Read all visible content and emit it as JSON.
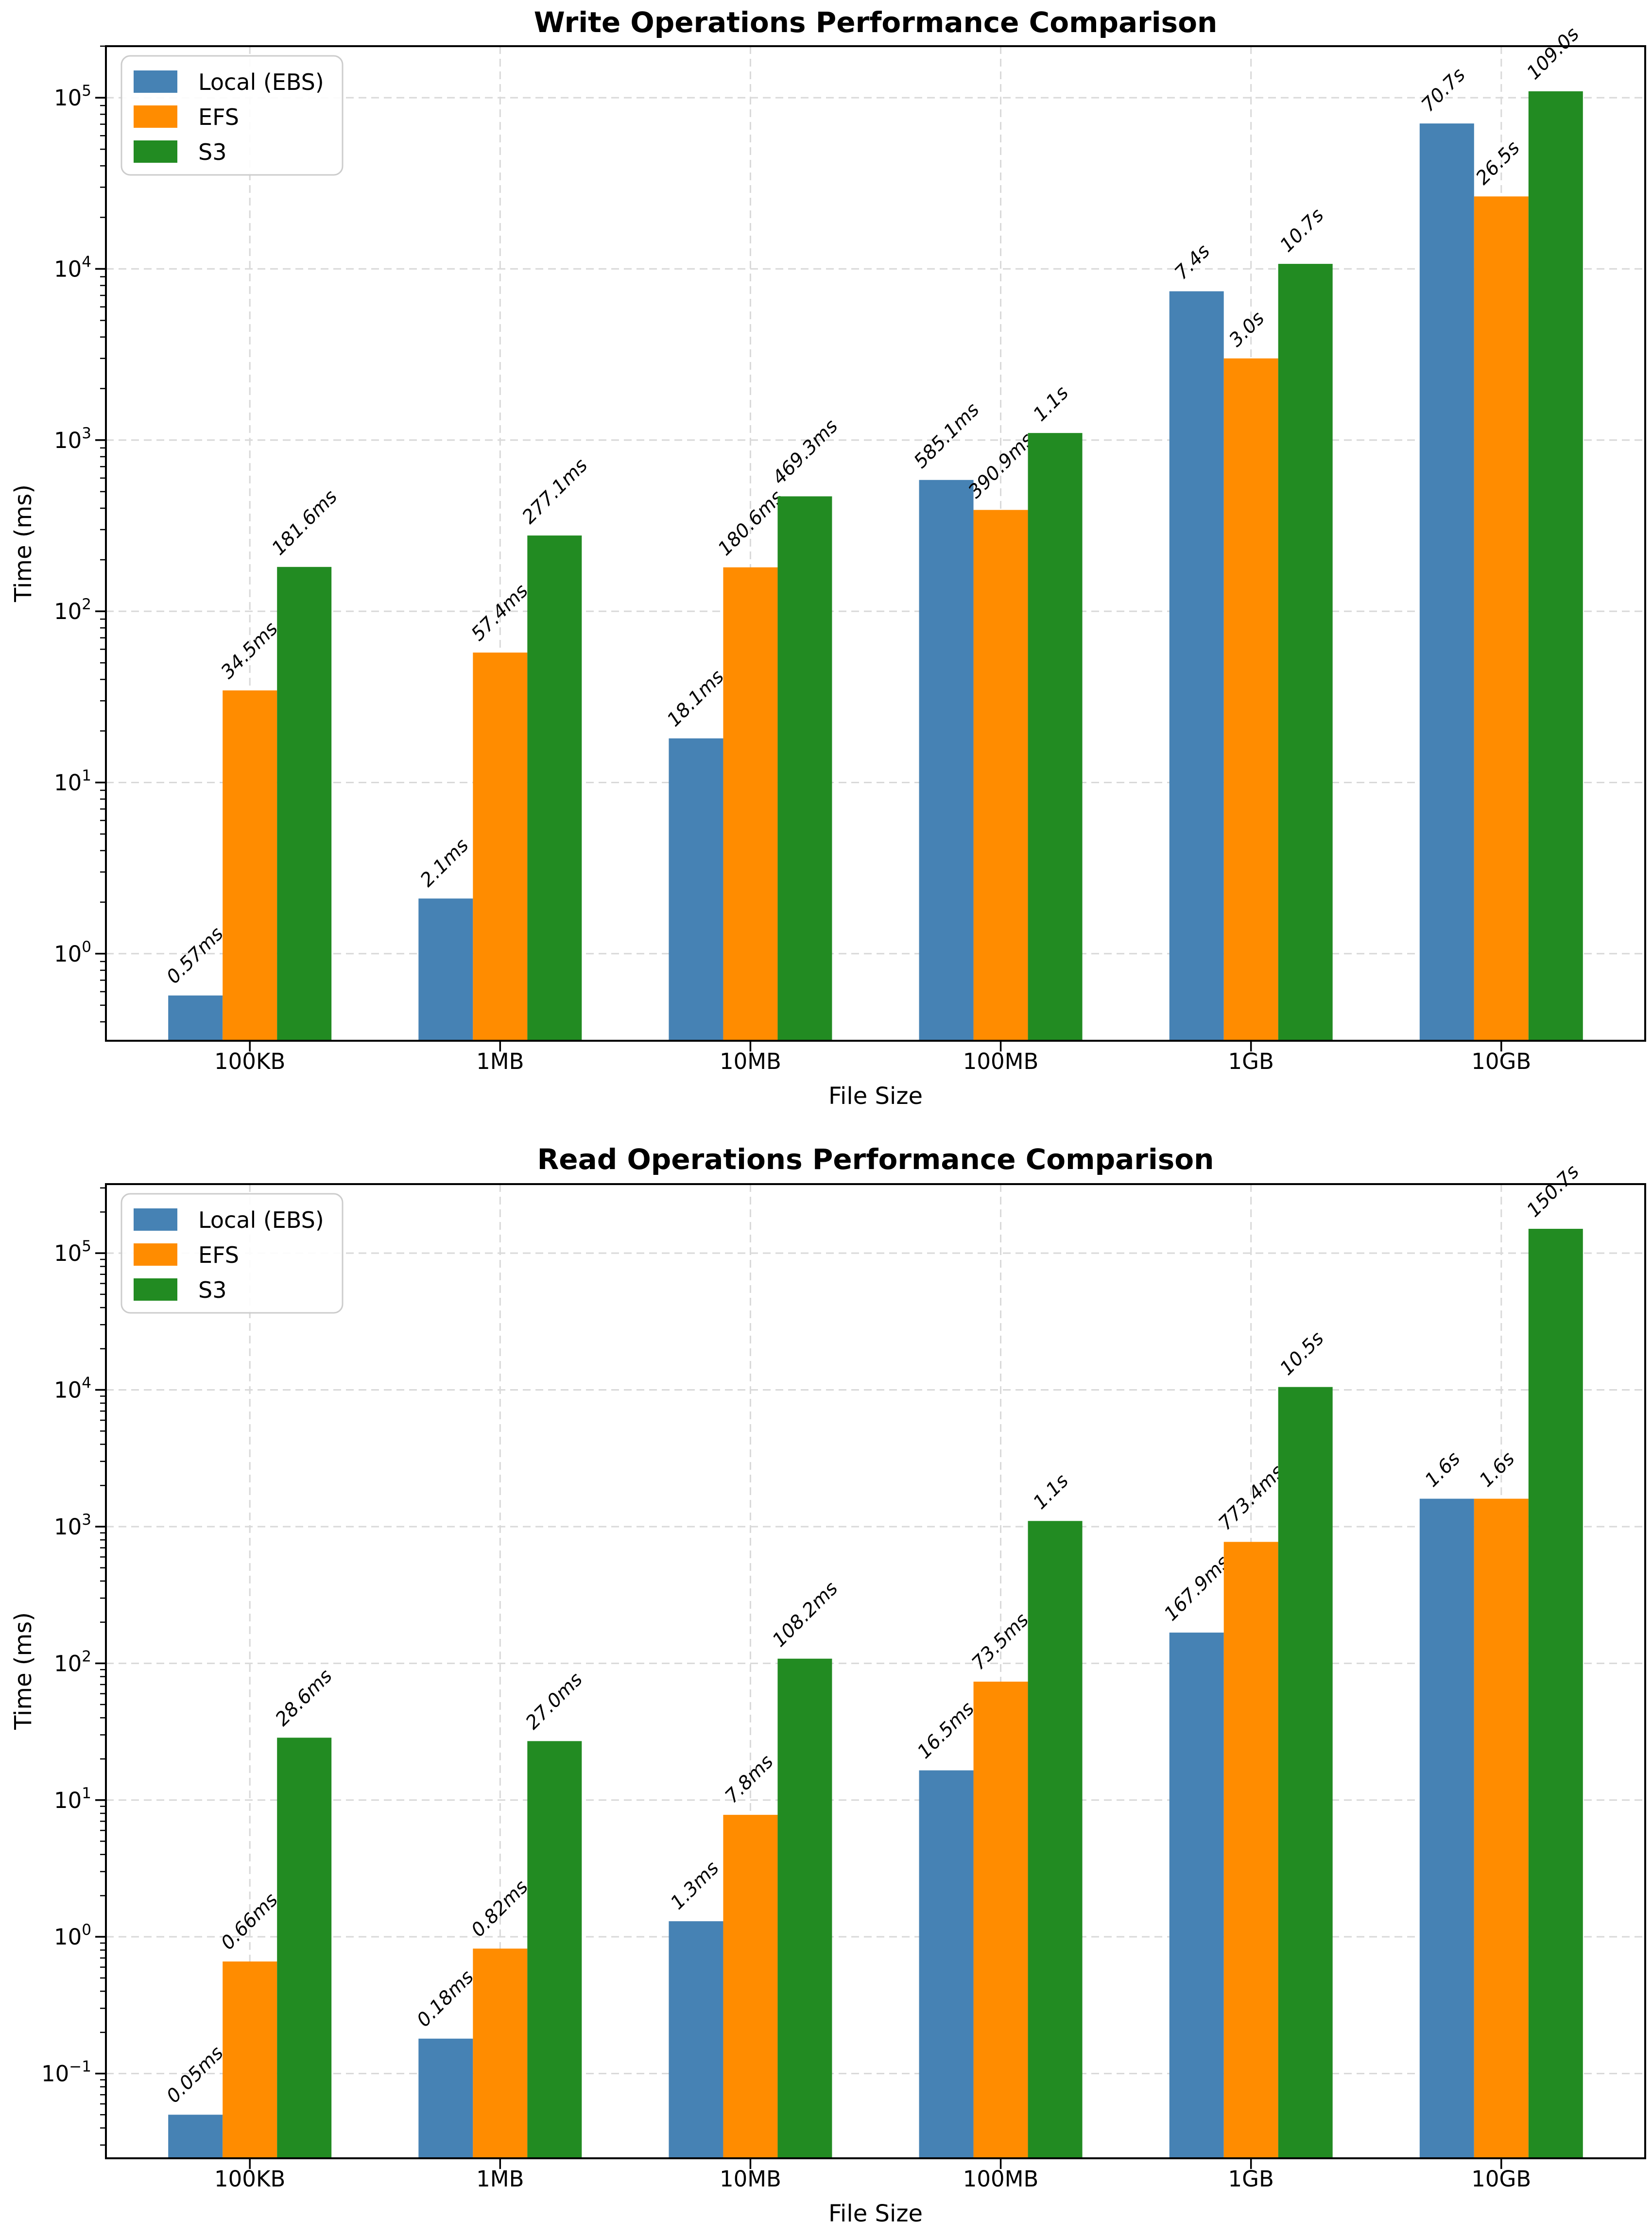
{
  "figure": {
    "background": "#ffffff",
    "text_color": "#000000",
    "grid_color": "#d9d9d9",
    "spine_color": "#000000",
    "legend_border_color": "#cccccc"
  },
  "chart_data": [
    {
      "type": "bar",
      "title": "Write Operations Performance Comparison",
      "xlabel": "File Size",
      "ylabel": "Time (ms)",
      "yscale": "log",
      "grid": true,
      "legend_position": "top-left",
      "categories": [
        "100KB",
        "1MB",
        "10MB",
        "100MB",
        "1GB",
        "10GB"
      ],
      "ylim": [
        0.31,
        200000
      ],
      "ytick_exponents": [
        0,
        1,
        2,
        3,
        4,
        5
      ],
      "series": [
        {
          "name": "Local (EBS)",
          "color": "#4682B4",
          "values_ms": [
            0.57,
            2.1,
            18.1,
            585.1,
            7400,
            70700
          ],
          "labels": [
            "0.57ms",
            "2.1ms",
            "18.1ms",
            "585.1ms",
            "7.4s",
            "70.7s"
          ]
        },
        {
          "name": "EFS",
          "color": "#FF8C00",
          "values_ms": [
            34.5,
            57.4,
            180.6,
            390.9,
            3000,
            26500
          ],
          "labels": [
            "34.5ms",
            "57.4ms",
            "180.6ms",
            "390.9ms",
            "3.0s",
            "26.5s"
          ]
        },
        {
          "name": "S3",
          "color": "#228B22",
          "values_ms": [
            181.6,
            277.1,
            469.3,
            1100,
            10700,
            109000
          ],
          "labels": [
            "181.6ms",
            "277.1ms",
            "469.3ms",
            "1.1s",
            "10.7s",
            "109.0s"
          ]
        }
      ]
    },
    {
      "type": "bar",
      "title": "Read Operations Performance Comparison",
      "xlabel": "File Size",
      "ylabel": "Time (ms)",
      "yscale": "log",
      "grid": true,
      "legend_position": "top-left",
      "categories": [
        "100KB",
        "1MB",
        "10MB",
        "100MB",
        "1GB",
        "10GB"
      ],
      "ylim": [
        0.024,
        320000
      ],
      "ytick_exponents": [
        -1,
        0,
        1,
        2,
        3,
        4,
        5
      ],
      "series": [
        {
          "name": "Local (EBS)",
          "color": "#4682B4",
          "values_ms": [
            0.05,
            0.18,
            1.3,
            16.5,
            167.9,
            1600
          ],
          "labels": [
            "0.05ms",
            "0.18ms",
            "1.3ms",
            "16.5ms",
            "167.9ms",
            "1.6s"
          ]
        },
        {
          "name": "EFS",
          "color": "#FF8C00",
          "values_ms": [
            0.66,
            0.82,
            7.8,
            73.5,
            773.4,
            1600
          ],
          "labels": [
            "0.66ms",
            "0.82ms",
            "7.8ms",
            "73.5ms",
            "773.4ms",
            "1.6s"
          ]
        },
        {
          "name": "S3",
          "color": "#228B22",
          "values_ms": [
            28.6,
            27.0,
            108.2,
            1100,
            10500,
            150700
          ],
          "labels": [
            "28.6ms",
            "27.0ms",
            "108.2ms",
            "1.1s",
            "10.5s",
            "150.7s"
          ]
        }
      ]
    }
  ]
}
